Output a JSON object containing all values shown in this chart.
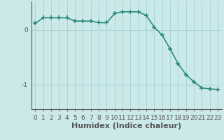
{
  "xlabel": "Humidex (Indice chaleur)",
  "x": [
    0,
    1,
    2,
    3,
    4,
    5,
    6,
    7,
    8,
    9,
    10,
    11,
    12,
    13,
    14,
    15,
    16,
    17,
    18,
    19,
    20,
    21,
    22,
    23
  ],
  "y": [
    0.12,
    0.22,
    0.22,
    0.22,
    0.22,
    0.16,
    0.16,
    0.16,
    0.13,
    0.13,
    0.3,
    0.33,
    0.33,
    0.33,
    0.26,
    0.05,
    -0.1,
    -0.35,
    -0.62,
    -0.82,
    -0.95,
    -1.06,
    -1.08,
    -1.09
  ],
  "line_color": "#2e8b7a",
  "marker": "+",
  "marker_color": "#2e8b7a",
  "bg_color": "#cce9ea",
  "grid_color": "#aad4d5",
  "axis_color": "#555555",
  "spine_color": "#555555",
  "ylim": [
    -1.45,
    0.52
  ],
  "xlim": [
    -0.5,
    23.5
  ],
  "yticks": [
    0,
    -1
  ],
  "xtick_labels": [
    "0",
    "1",
    "2",
    "3",
    "4",
    "5",
    "6",
    "7",
    "8",
    "9",
    "10",
    "11",
    "12",
    "13",
    "14",
    "15",
    "16",
    "17",
    "18",
    "19",
    "20",
    "21",
    "22",
    "23"
  ],
  "tick_fontsize": 6.5,
  "xlabel_fontsize": 8,
  "line_width": 1.2,
  "marker_size": 4
}
